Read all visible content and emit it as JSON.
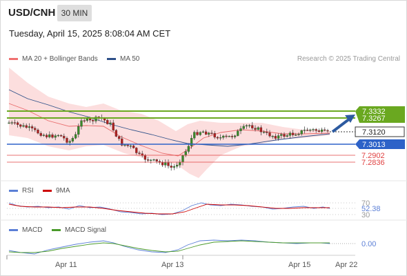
{
  "header": {
    "symbol": "USD/CNH",
    "timeframe": "30 MIN",
    "datetime": "Tuesday, April 15, 2025 8:08:04 AM CET"
  },
  "price_panel": {
    "legend": [
      {
        "label": "MA 20 + Bollinger Bands",
        "color": "#f07070"
      },
      {
        "label": "MA 50",
        "color": "#2d4f88"
      }
    ],
    "credit": "Research © 2025 Trading Central",
    "levels": {
      "resistance_1": {
        "label": "7.3332",
        "value": 7.3332
      },
      "resistance_2": {
        "label": "7.3267",
        "value": 7.3267
      },
      "last_price": {
        "label": "7.3120",
        "value": 7.312
      },
      "pivot": {
        "label": "7.3013",
        "value": 7.3013
      },
      "support_1": {
        "label": "7.2902",
        "value": 7.2902
      },
      "support_2": {
        "label": "7.2836",
        "value": 7.2836
      }
    },
    "colors": {
      "resistance": "#6aa820",
      "pivot": "#2d62c8",
      "support": "#e04040",
      "arrow": "#2d5aa0"
    }
  },
  "rsi_panel": {
    "legend": [
      {
        "label": "RSI",
        "color": "#5b7fd6"
      },
      {
        "label": "9MA",
        "color": "#cc0000"
      }
    ],
    "levels": [
      "70",
      "30"
    ],
    "value": "52.38"
  },
  "macd_panel": {
    "legend": [
      {
        "label": "MACD",
        "color": "#5b7fd6"
      },
      {
        "label": "MACD Signal",
        "color": "#4a9a2a"
      }
    ],
    "value": "0.00"
  },
  "x_axis": {
    "ticks": [
      "Apr 11",
      "Apr 13",
      "Apr 15",
      "Apr 22"
    ]
  }
}
